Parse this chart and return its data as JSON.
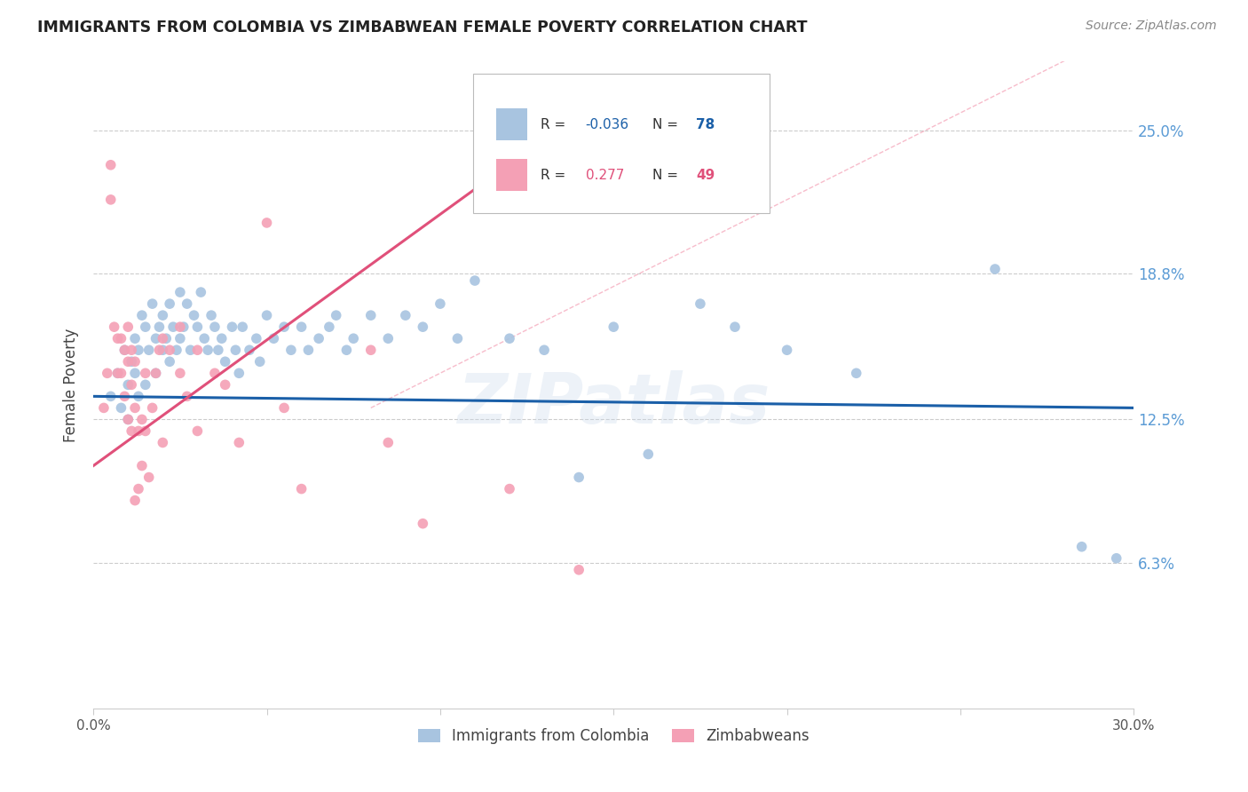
{
  "title": "IMMIGRANTS FROM COLOMBIA VS ZIMBABWEAN FEMALE POVERTY CORRELATION CHART",
  "source": "Source: ZipAtlas.com",
  "ylabel": "Female Poverty",
  "xlim": [
    0,
    0.3
  ],
  "ylim": [
    0,
    0.28
  ],
  "ytick_right_values": [
    0.063,
    0.125,
    0.188,
    0.25
  ],
  "ytick_right_labels": [
    "6.3%",
    "12.5%",
    "18.8%",
    "25.0%"
  ],
  "R_blue": -0.036,
  "N_blue": 78,
  "R_pink": 0.277,
  "N_pink": 49,
  "blue_color": "#a8c4e0",
  "pink_color": "#f4a0b5",
  "blue_line_color": "#1a5fa8",
  "pink_line_color": "#e0507a",
  "watermark": "ZIPatlas",
  "blue_scatter_x": [
    0.005,
    0.007,
    0.008,
    0.009,
    0.01,
    0.01,
    0.011,
    0.012,
    0.012,
    0.013,
    0.013,
    0.014,
    0.015,
    0.015,
    0.016,
    0.017,
    0.018,
    0.018,
    0.019,
    0.02,
    0.02,
    0.021,
    0.022,
    0.022,
    0.023,
    0.024,
    0.025,
    0.025,
    0.026,
    0.027,
    0.028,
    0.029,
    0.03,
    0.031,
    0.032,
    0.033,
    0.034,
    0.035,
    0.036,
    0.037,
    0.038,
    0.04,
    0.041,
    0.042,
    0.043,
    0.045,
    0.047,
    0.048,
    0.05,
    0.052,
    0.055,
    0.057,
    0.06,
    0.062,
    0.065,
    0.068,
    0.07,
    0.073,
    0.075,
    0.08,
    0.085,
    0.09,
    0.095,
    0.1,
    0.105,
    0.11,
    0.12,
    0.13,
    0.14,
    0.15,
    0.16,
    0.175,
    0.185,
    0.2,
    0.22,
    0.26,
    0.285,
    0.295
  ],
  "blue_scatter_y": [
    0.135,
    0.145,
    0.13,
    0.155,
    0.14,
    0.125,
    0.15,
    0.145,
    0.16,
    0.135,
    0.155,
    0.17,
    0.165,
    0.14,
    0.155,
    0.175,
    0.16,
    0.145,
    0.165,
    0.17,
    0.155,
    0.16,
    0.175,
    0.15,
    0.165,
    0.155,
    0.18,
    0.16,
    0.165,
    0.175,
    0.155,
    0.17,
    0.165,
    0.18,
    0.16,
    0.155,
    0.17,
    0.165,
    0.155,
    0.16,
    0.15,
    0.165,
    0.155,
    0.145,
    0.165,
    0.155,
    0.16,
    0.15,
    0.17,
    0.16,
    0.165,
    0.155,
    0.165,
    0.155,
    0.16,
    0.165,
    0.17,
    0.155,
    0.16,
    0.17,
    0.16,
    0.17,
    0.165,
    0.175,
    0.16,
    0.185,
    0.16,
    0.155,
    0.1,
    0.165,
    0.11,
    0.175,
    0.165,
    0.155,
    0.145,
    0.19,
    0.07,
    0.065
  ],
  "pink_scatter_x": [
    0.003,
    0.004,
    0.005,
    0.005,
    0.006,
    0.007,
    0.007,
    0.008,
    0.008,
    0.009,
    0.009,
    0.01,
    0.01,
    0.01,
    0.011,
    0.011,
    0.011,
    0.012,
    0.012,
    0.012,
    0.013,
    0.013,
    0.014,
    0.014,
    0.015,
    0.015,
    0.016,
    0.017,
    0.018,
    0.019,
    0.02,
    0.02,
    0.022,
    0.025,
    0.025,
    0.027,
    0.03,
    0.03,
    0.035,
    0.038,
    0.042,
    0.05,
    0.055,
    0.06,
    0.08,
    0.085,
    0.095,
    0.12,
    0.14
  ],
  "pink_scatter_y": [
    0.13,
    0.145,
    0.235,
    0.22,
    0.165,
    0.16,
    0.145,
    0.16,
    0.145,
    0.155,
    0.135,
    0.165,
    0.15,
    0.125,
    0.155,
    0.14,
    0.12,
    0.15,
    0.13,
    0.09,
    0.12,
    0.095,
    0.125,
    0.105,
    0.145,
    0.12,
    0.1,
    0.13,
    0.145,
    0.155,
    0.16,
    0.115,
    0.155,
    0.145,
    0.165,
    0.135,
    0.155,
    0.12,
    0.145,
    0.14,
    0.115,
    0.21,
    0.13,
    0.095,
    0.155,
    0.115,
    0.08,
    0.095,
    0.06
  ]
}
